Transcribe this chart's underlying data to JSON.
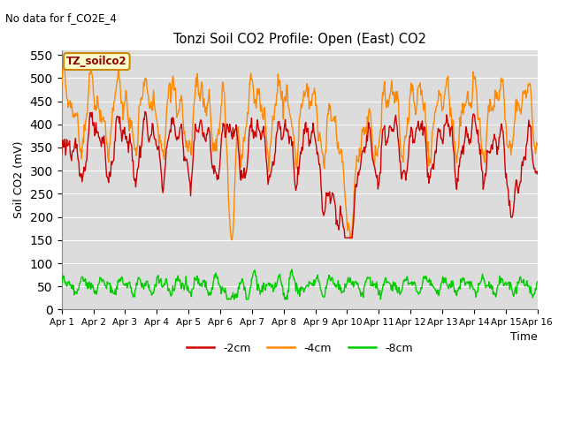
{
  "title": "Tonzi Soil CO2 Profile: Open (East) CO2",
  "subtitle": "No data for f_CO2E_4",
  "ylabel": "Soil CO2 (mV)",
  "xlabel": "Time",
  "annotation": "TZ_soilco2",
  "ylim": [
    0,
    560
  ],
  "yticks": [
    0,
    50,
    100,
    150,
    200,
    250,
    300,
    350,
    400,
    450,
    500,
    550
  ],
  "xtick_labels": [
    "Apr 1",
    "Apr 2",
    "Apr 3",
    "Apr 4",
    "Apr 5",
    "Apr 6",
    "Apr 7",
    "Apr 8",
    "Apr 9",
    "Apr 10",
    "Apr 11",
    "Apr 12",
    "Apr 13",
    "Apr 14",
    "Apr 15",
    "Apr 16"
  ],
  "line_2cm_color": "#cc0000",
  "line_4cm_color": "#ff8800",
  "line_8cm_color": "#00cc00",
  "bg_color": "#dcdcdc",
  "legend_labels": [
    "-2cm",
    "-4cm",
    "-8cm"
  ],
  "line_width": 1.0,
  "n_points": 720
}
